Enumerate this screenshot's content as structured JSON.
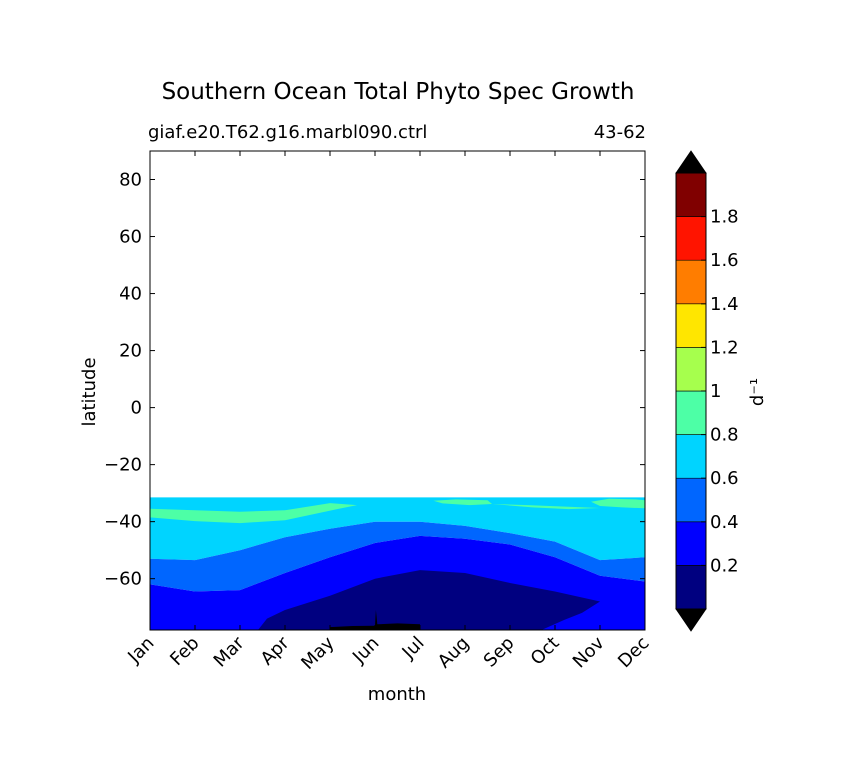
{
  "chart_data": {
    "type": "contourf",
    "title": "Southern Ocean Total Phyto Spec Growth",
    "subtitle_left": "giaf.e20.T62.g16.marbl090.ctrl",
    "subtitle_right": "43-62",
    "xlabel": "month",
    "ylabel": "latitude",
    "x_categories": [
      "Jan",
      "Feb",
      "Mar",
      "Apr",
      "May",
      "Jun",
      "Jul",
      "Aug",
      "Sep",
      "Oct",
      "Nov",
      "Dec"
    ],
    "ylim": [
      -78,
      90
    ],
    "yticks": [
      80,
      60,
      40,
      20,
      0,
      -20,
      -40,
      -60
    ],
    "ytick_labels": [
      "80",
      "60",
      "40",
      "20",
      "0",
      "−20",
      "−40",
      "−60"
    ],
    "colorbar": {
      "label": "d⁻¹",
      "levels": [
        0,
        0.2,
        0.4,
        0.6,
        0.8,
        1.0,
        1.2,
        1.4,
        1.6,
        1.8,
        2.0
      ],
      "tick_labels": [
        "0.2",
        "0.4",
        "0.6",
        "0.8",
        "1",
        "1.2",
        "1.4",
        "1.6",
        "1.8"
      ],
      "colors": [
        "#000080",
        "#0000ff",
        "#0066ff",
        "#00d4ff",
        "#4dffa6",
        "#a6ff4d",
        "#ffe600",
        "#ff7d00",
        "#ff1400",
        "#800000"
      ],
      "under_color": "#000000",
      "over_color": "#000000"
    },
    "data_extent_lat": [
      -78,
      -31.5
    ],
    "contour_boundaries": [
      {
        "level": 0.8,
        "lat_by_month": [
          -38,
          -39,
          -40,
          -39.5,
          -37.5,
          -36,
          -35,
          -34.5,
          -35.5,
          -35.5,
          -34.5,
          -35
        ],
        "note": "upper boundary of 0.6-0.8 band; 0.8-1.0 patches near Jan-May and Oct-Dec"
      },
      {
        "level": 0.6,
        "lat_by_month": [
          -53,
          -53.5,
          -50,
          -45.5,
          -42.5,
          -40,
          -40,
          -41.5,
          -44,
          -47,
          -53.5,
          -52.5
        ]
      },
      {
        "level": 0.4,
        "lat_by_month": [
          -62,
          -64.5,
          -64,
          -58,
          -52.5,
          -47.5,
          -45,
          -46,
          -48,
          -52.5,
          -59,
          -61
        ]
      },
      {
        "level": 0.2,
        "lat_by_month": [
          null,
          null,
          null,
          -75.5,
          -66,
          -60,
          -57,
          -58,
          -61.5,
          -64.5,
          -68,
          null
        ]
      }
    ],
    "below_min_region": {
      "months": [
        "May",
        "Jun",
        "Jul"
      ],
      "lat_range": [
        -78,
        -75
      ]
    }
  }
}
